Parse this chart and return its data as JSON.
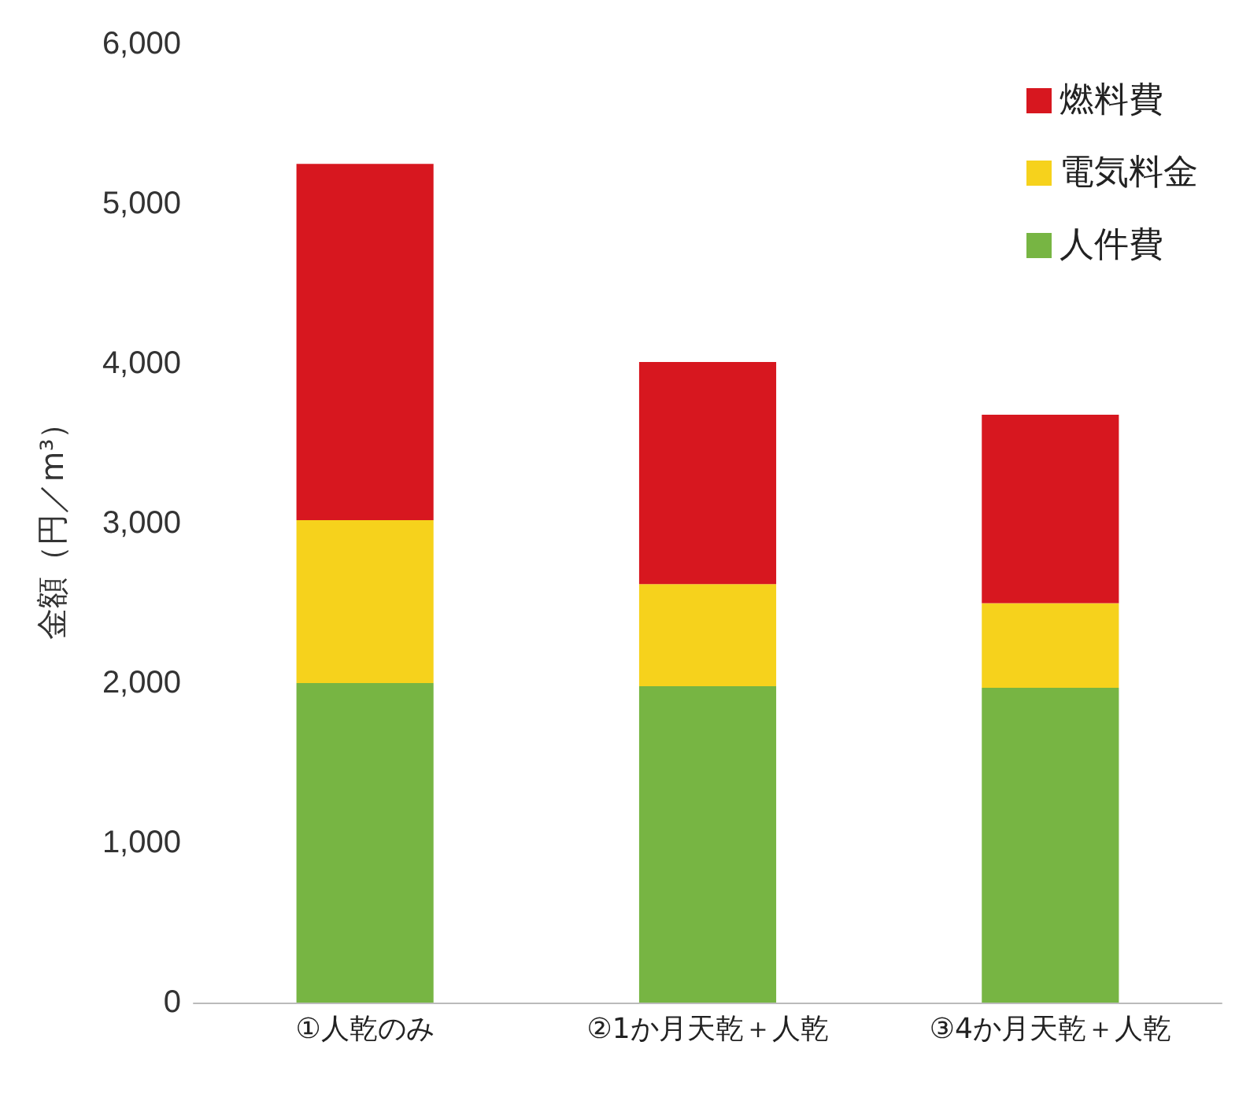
{
  "chart_data": {
    "type": "bar",
    "stacked": true,
    "ylabel": "金額（円／m³）",
    "categories": [
      "①人乾のみ",
      "②1か月天乾＋人乾",
      "③4か月天乾＋人乾"
    ],
    "series": [
      {
        "name": "人件費",
        "color": "#77b543",
        "values": [
          2000,
          1980,
          1970
        ]
      },
      {
        "name": "電気料金",
        "color": "#f6d21c",
        "values": [
          1020,
          640,
          530
        ]
      },
      {
        "name": "燃料費",
        "color": "#d7171f",
        "values": [
          2230,
          1390,
          1180
        ]
      }
    ],
    "ylim": [
      0,
      6000
    ],
    "yticks": [
      0,
      {
        "value": 1000,
        "label": "1,000"
      },
      {
        "value": 2000,
        "label": "2,000"
      },
      {
        "value": 3000,
        "label": "3,000"
      },
      {
        "value": 4000,
        "label": "4,000"
      },
      {
        "value": 5000,
        "label": "5,000"
      },
      {
        "value": 6000,
        "label": "6,000"
      }
    ],
    "grid": false,
    "legend": "top right"
  }
}
